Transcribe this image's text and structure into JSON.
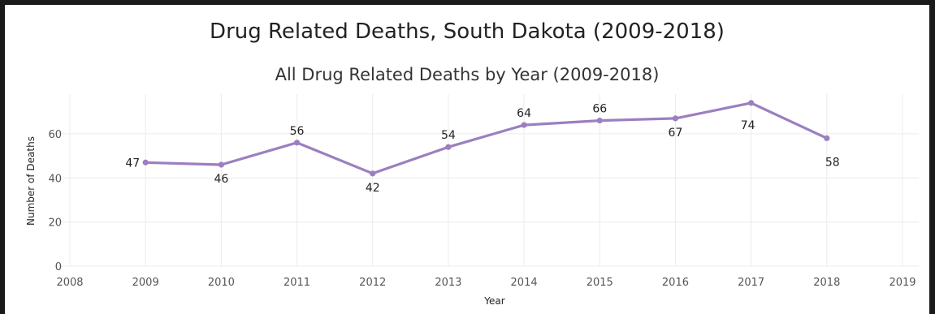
{
  "chart_data": {
    "type": "line",
    "title": "Drug Related Deaths, South Dakota (2009-2018)",
    "subtitle": "All Drug Related Deaths by Year (2009-2018)",
    "xlabel": "Year",
    "ylabel": "Number of Deaths",
    "xlim": [
      2008,
      2019
    ],
    "ylim": [
      0,
      78
    ],
    "x_ticks": [
      2008,
      2009,
      2010,
      2011,
      2012,
      2013,
      2014,
      2015,
      2016,
      2017,
      2018,
      2019
    ],
    "y_ticks": [
      0,
      20,
      40,
      60
    ],
    "grid": true,
    "legend": "none",
    "line_color": "#9b7fc0",
    "series": [
      {
        "x": [
          2009,
          2010,
          2011,
          2012,
          2013,
          2014,
          2015,
          2016,
          2017,
          2018
        ],
        "values": [
          47,
          46,
          56,
          42,
          54,
          64,
          66,
          67,
          74,
          58
        ],
        "labels": [
          "47",
          "46",
          "56",
          "42",
          "54",
          "64",
          "66",
          "67",
          "74",
          "58"
        ]
      }
    ]
  }
}
